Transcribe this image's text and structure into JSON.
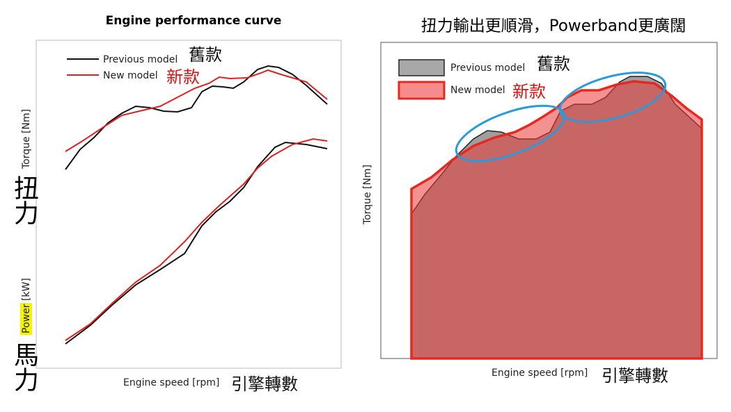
{
  "left": {
    "title": "Engine performance curve",
    "legend": [
      {
        "name": "Previous model",
        "tag": "舊款"
      },
      {
        "name": "New model",
        "tag": "新款"
      }
    ],
    "y_label_torque": "Torque [Nm]",
    "y_label_power": {
      "highlight": "Power",
      "rest": " [kW]"
    },
    "torque_tag": "扭力",
    "power_tag": "馬力",
    "x_label": "Engine speed [rpm]",
    "x_tag": "引擎轉數"
  },
  "right": {
    "title": "扭力輸出更順滑，Powerband更廣闊",
    "legend": [
      {
        "name": "Previous model",
        "tag": "舊款"
      },
      {
        "name": "New model",
        "tag": "新款"
      }
    ],
    "y_label": "Torque [Nm]",
    "x_label": "Engine speed [rpm]",
    "x_tag": "引擎轉數"
  }
}
